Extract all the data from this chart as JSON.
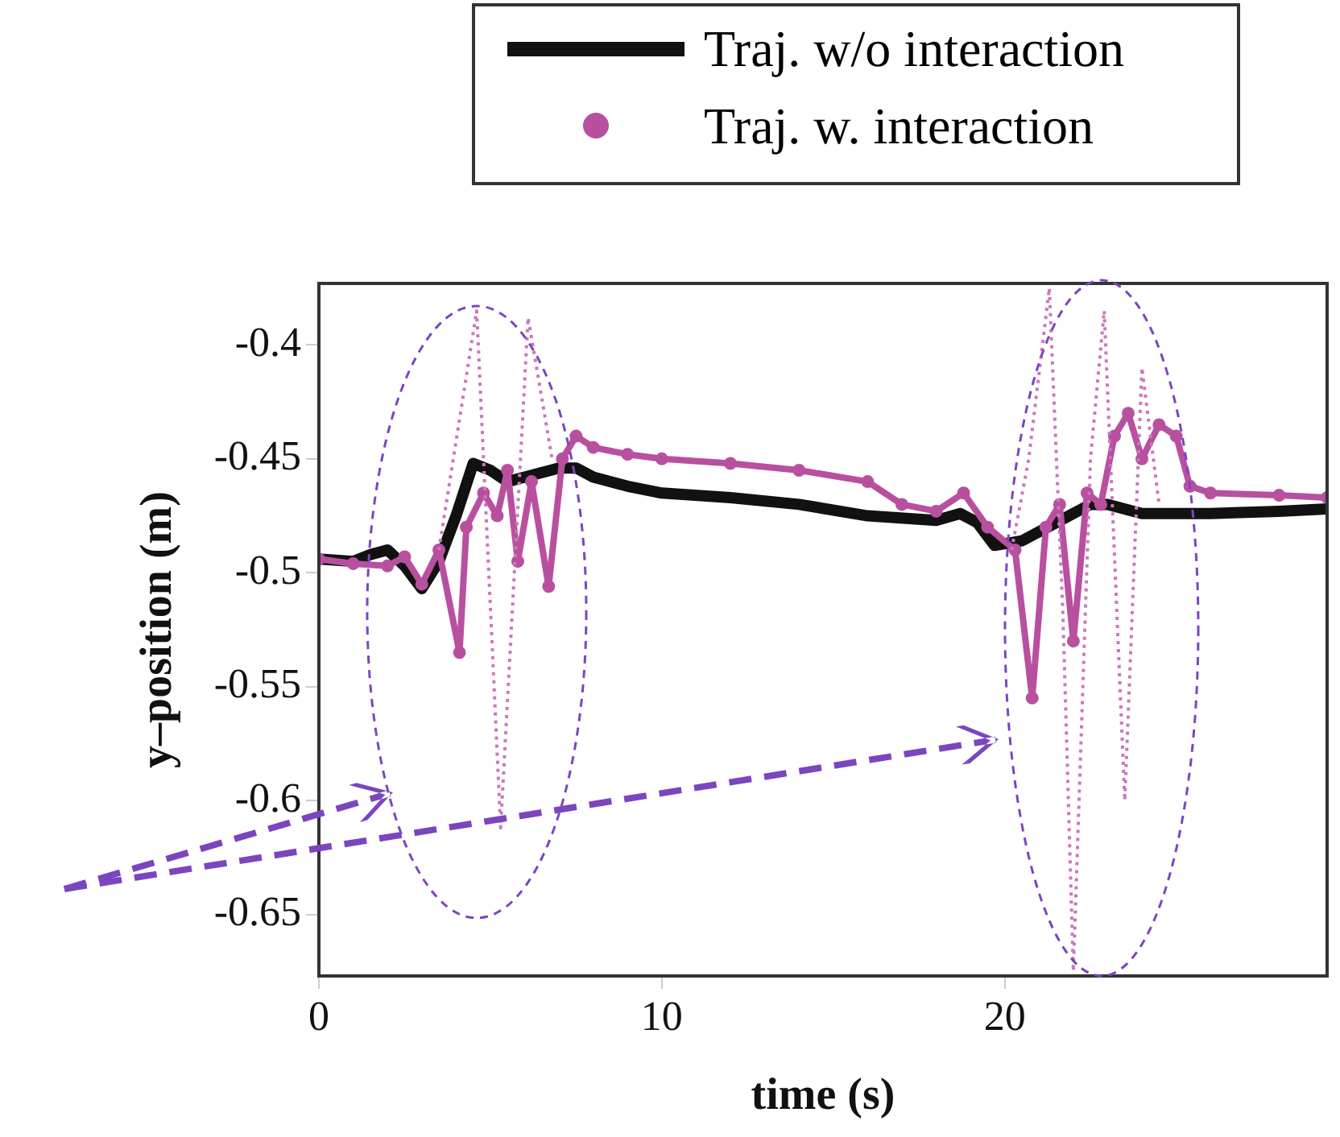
{
  "chart_data": {
    "type": "line",
    "xlabel": "time (s)",
    "ylabel": "y–position (m)",
    "xlim": [
      0,
      29.4
    ],
    "xticks": [
      0,
      10,
      20
    ],
    "ylim": [
      -0.677,
      -0.373
    ],
    "yticks": [
      -0.4,
      -0.45,
      -0.5,
      -0.55,
      -0.6,
      -0.65
    ],
    "legend": "top right",
    "grid": false,
    "series": [
      {
        "name": "Traj. w/o interaction",
        "color": "#111111",
        "marker": "none",
        "x": [
          0,
          1,
          1.5,
          2,
          2.5,
          3,
          3.5,
          4,
          4.5,
          5,
          5.5,
          6,
          7,
          7.5,
          8,
          9,
          10,
          12,
          14,
          16,
          18,
          18.7,
          19.2,
          19.7,
          20.5,
          21.5,
          22.5,
          23,
          24,
          26,
          28,
          29.4
        ],
        "values": [
          -0.494,
          -0.495,
          -0.492,
          -0.49,
          -0.497,
          -0.507,
          -0.495,
          -0.475,
          -0.452,
          -0.455,
          -0.46,
          -0.458,
          -0.454,
          -0.454,
          -0.458,
          -0.462,
          -0.465,
          -0.467,
          -0.47,
          -0.475,
          -0.477,
          -0.474,
          -0.478,
          -0.488,
          -0.486,
          -0.478,
          -0.47,
          -0.47,
          -0.474,
          -0.474,
          -0.473,
          -0.472
        ]
      },
      {
        "name": "Traj. w. interaction",
        "color": "#b8509f",
        "marker": "circle",
        "x": [
          0,
          1,
          2,
          2.5,
          3,
          3.5,
          4.1,
          4.3,
          4.8,
          5.2,
          5.5,
          5.8,
          6.2,
          6.7,
          7.1,
          7.5,
          8,
          9,
          10,
          12,
          14,
          16,
          17,
          18,
          18.8,
          19.5,
          20.3,
          20.8,
          21.2,
          21.6,
          22,
          22.4,
          22.8,
          23.2,
          23.6,
          24,
          24.5,
          25,
          25.4,
          26,
          28,
          29.4
        ],
        "values": [
          -0.494,
          -0.496,
          -0.497,
          -0.493,
          -0.505,
          -0.49,
          -0.535,
          -0.48,
          -0.465,
          -0.475,
          -0.455,
          -0.495,
          -0.46,
          -0.506,
          -0.45,
          -0.44,
          -0.445,
          -0.448,
          -0.45,
          -0.452,
          -0.455,
          -0.46,
          -0.47,
          -0.473,
          -0.465,
          -0.48,
          -0.49,
          -0.555,
          -0.48,
          -0.47,
          -0.53,
          -0.465,
          -0.47,
          -0.44,
          -0.43,
          -0.45,
          -0.435,
          -0.44,
          -0.462,
          -0.465,
          -0.466,
          -0.467
        ]
      },
      {
        "color": "#cc77bb",
        "marker": "none",
        "line_style": "dotted",
        "x": [
          3.5,
          4.6,
          5.3,
          6.1,
          6.8,
          13,
          20.2,
          20.7,
          21.3,
          21.7,
          22,
          22.5,
          22.9,
          23.5,
          24,
          24.5
        ],
        "values": [
          -0.49,
          -0.385,
          -0.612,
          -0.388,
          -0.45,
          null,
          -0.49,
          -0.45,
          -0.375,
          -0.52,
          -0.675,
          -0.45,
          -0.385,
          -0.6,
          -0.41,
          -0.47
        ]
      }
    ]
  }
}
